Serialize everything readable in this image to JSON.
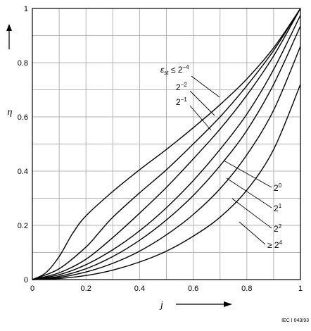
{
  "chart_data": {
    "type": "line",
    "xlabel": "j",
    "ylabel": "η",
    "xlim": [
      0,
      1
    ],
    "ylim": [
      0,
      1
    ],
    "grid": true,
    "xticks": [
      "0",
      "0.2",
      "0.4",
      "0.6",
      "0.8",
      "1"
    ],
    "yticks": [
      "0",
      "0.2",
      "0.4",
      "0.6",
      "0.8",
      "1"
    ],
    "series": [
      {
        "key": "c1",
        "label_base": "ε",
        "label_sub": "st",
        "label_rel": " ≤ 2",
        "label_sup": "−4",
        "label_side": "upper",
        "x": [
          0,
          0.05,
          0.1,
          0.15,
          0.2,
          0.3,
          0.4,
          0.5,
          0.6,
          0.7,
          0.8,
          0.9,
          1
        ],
        "y": [
          0,
          0.025,
          0.085,
          0.17,
          0.235,
          0.325,
          0.405,
          0.48,
          0.56,
          0.645,
          0.74,
          0.855,
          1
        ]
      },
      {
        "key": "c2",
        "label_base": "2",
        "label_sup": "−2",
        "label_side": "upper",
        "x": [
          0,
          0.1,
          0.2,
          0.25,
          0.3,
          0.4,
          0.5,
          0.6,
          0.7,
          0.8,
          0.9,
          1
        ],
        "y": [
          0,
          0.04,
          0.12,
          0.175,
          0.23,
          0.32,
          0.405,
          0.5,
          0.6,
          0.715,
          0.845,
          1
        ]
      },
      {
        "key": "c3",
        "label_base": "2",
        "label_sup": "−1",
        "label_side": "upper",
        "x": [
          0,
          0.1,
          0.2,
          0.3,
          0.4,
          0.5,
          0.6,
          0.7,
          0.8,
          0.9,
          1
        ],
        "y": [
          0,
          0.025,
          0.075,
          0.155,
          0.245,
          0.34,
          0.445,
          0.555,
          0.68,
          0.825,
          1
        ]
      },
      {
        "key": "c4",
        "label_base": "2",
        "label_sup": "0",
        "label_side": "lower",
        "x": [
          0,
          0.1,
          0.2,
          0.3,
          0.4,
          0.5,
          0.6,
          0.7,
          0.8,
          0.9,
          1
        ],
        "y": [
          0,
          0.018,
          0.055,
          0.11,
          0.18,
          0.265,
          0.365,
          0.48,
          0.61,
          0.775,
          0.975
        ]
      },
      {
        "key": "c5",
        "label_base": "2",
        "label_sup": "1",
        "label_side": "lower",
        "x": [
          0,
          0.1,
          0.2,
          0.3,
          0.4,
          0.5,
          0.6,
          0.7,
          0.8,
          0.9,
          1
        ],
        "y": [
          0,
          0.012,
          0.04,
          0.085,
          0.145,
          0.22,
          0.31,
          0.42,
          0.55,
          0.72,
          0.935
        ]
      },
      {
        "key": "c6",
        "label_base": "2",
        "label_sup": "2",
        "label_side": "lower",
        "x": [
          0,
          0.1,
          0.2,
          0.3,
          0.4,
          0.5,
          0.6,
          0.7,
          0.8,
          0.9,
          1
        ],
        "y": [
          0,
          0.008,
          0.028,
          0.06,
          0.105,
          0.165,
          0.24,
          0.335,
          0.46,
          0.625,
          0.86
        ]
      },
      {
        "key": "c7",
        "label_base": "≥ 2",
        "label_sup": "4",
        "label_side": "lower",
        "x": [
          0,
          0.1,
          0.2,
          0.3,
          0.4,
          0.5,
          0.6,
          0.7,
          0.8,
          0.9,
          1
        ],
        "y": [
          0,
          0.004,
          0.015,
          0.035,
          0.065,
          0.105,
          0.16,
          0.23,
          0.33,
          0.48,
          0.72
        ]
      }
    ]
  },
  "credit": "IEC  I 043/93"
}
